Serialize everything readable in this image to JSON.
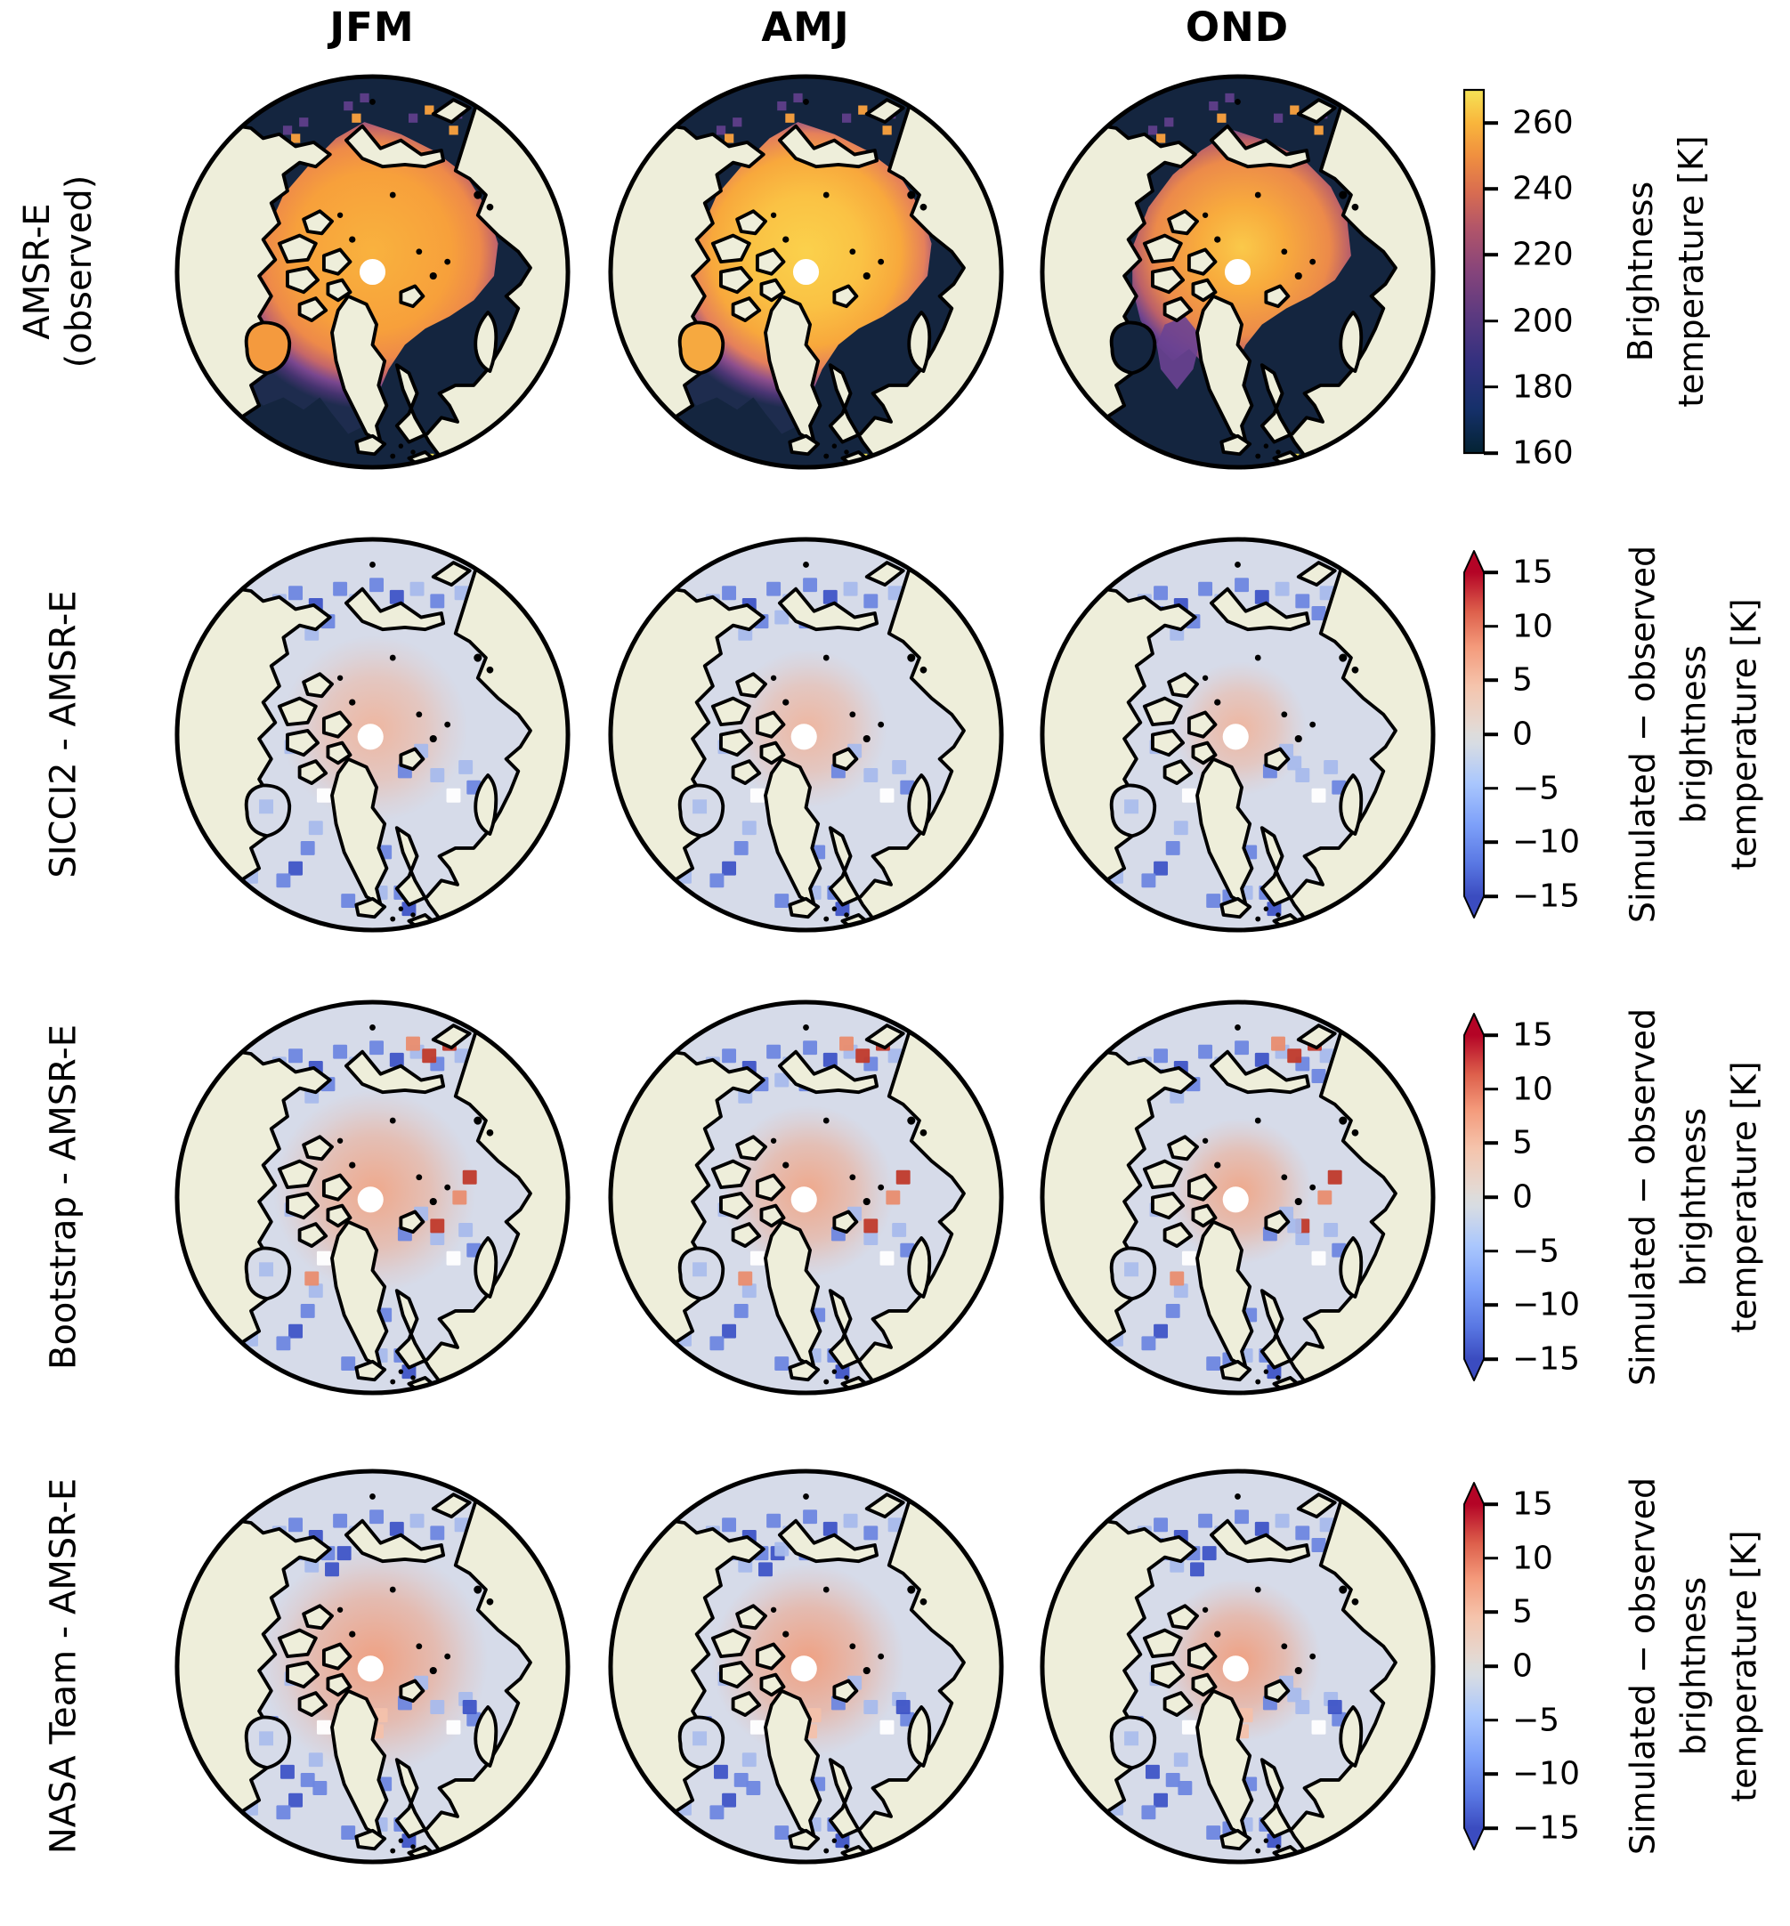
{
  "figure": {
    "background": "#ffffff",
    "description": "4x3 grid of North Polar stereographic maps comparing observed and simulated passive-microwave brightness temperatures"
  },
  "columns": [
    "JFM",
    "AMJ",
    "OND"
  ],
  "rows": [
    {
      "label": "AMSR-E (observed)",
      "label_lines": [
        "AMSR-E",
        "(observed)"
      ],
      "type": "observed",
      "colorbar": "observed",
      "seasons": [
        "large",
        "large_bright",
        "reduced"
      ],
      "hudson": [
        "#f49a3e",
        "#f6a940",
        "ocean"
      ]
    },
    {
      "label": "SICCI2 - AMSR-E",
      "label_lines": [
        "SICCI2 - AMSR-E"
      ],
      "type": "diff",
      "colorbar": "diff",
      "pink": {
        "color": "#f2b094",
        "r": 46,
        "opacity": 0.85
      },
      "extras": "none"
    },
    {
      "label": "Bootstrap - AMSR-E",
      "label_lines": [
        "Bootstrap - AMSR-E"
      ],
      "type": "diff",
      "colorbar": "diff",
      "pink": {
        "color": "#f0a687",
        "r": 50,
        "opacity": 0.95
      },
      "extras": "red_spots"
    },
    {
      "label": "NASA Team - AMSR-E",
      "label_lines": [
        "NASA Team - AMSR-E"
      ],
      "type": "diff",
      "colorbar": "diff",
      "pink": {
        "color": "#efa183",
        "r": 56,
        "opacity": 1.0
      },
      "extras": "more_blue"
    }
  ],
  "colorbars": {
    "observed": {
      "title_lines": [
        "Brightness",
        "temperature [K]"
      ],
      "vmin": 160,
      "vmax": 270,
      "ticks": [
        260,
        240,
        220,
        200,
        180,
        160
      ],
      "extend": false
    },
    "diff": {
      "title_lines": [
        "Simulated − observed",
        "brightness",
        "temperature [K]"
      ],
      "vmin": -15,
      "vmax": 15,
      "ticks": [
        15,
        10,
        5,
        0,
        -5,
        -10,
        -15
      ],
      "extend": true
    }
  },
  "palette": {
    "figure_bg": "#ffffff",
    "land": "#eeeeda",
    "coast": "#000000",
    "ocean": "#14253f",
    "pole_hole": "#ffffff",
    "obs_purple": "#6a4392",
    "obs_fringe_purple": "#5b3d86",
    "obs_fringe_orange": "#f09c3e",
    "obs_fringe_yellow": "#f2e356",
    "diff_base": "#d6dbe9",
    "diff_blue_light": "#a8bbec",
    "diff_blue_mid": "#6e87e0",
    "diff_blue_dark": "#3f55c7",
    "diff_white": "#ffffff",
    "diff_red": "#c03a2b",
    "diff_salmon": "#e98d6f",
    "diff_pink_patch": "#f3c1ab",
    "diff_pink_season_scale": [
      1.0,
      0.85,
      0.72
    ],
    "observed_ice_gradients": {
      "large": [
        [
          0,
          "#f9b23e"
        ],
        [
          0.5,
          "#f7a03b"
        ],
        [
          0.68,
          "#ee8a49"
        ],
        [
          0.78,
          "#c66768"
        ],
        [
          0.86,
          "#7a478f"
        ],
        [
          0.93,
          "#45336f"
        ],
        [
          1,
          "#1e2c4e"
        ]
      ],
      "large_bright": [
        [
          0,
          "#fbd14c"
        ],
        [
          0.35,
          "#fac244"
        ],
        [
          0.6,
          "#f8a83c"
        ],
        [
          0.75,
          "#e5805b"
        ],
        [
          0.85,
          "#8d4e8d"
        ],
        [
          0.93,
          "#4a3573"
        ],
        [
          1,
          "#1e2c4e"
        ]
      ],
      "reduced": [
        [
          0,
          "#fac94a"
        ],
        [
          0.3,
          "#f8ab3d"
        ],
        [
          0.62,
          "#ec8a4a"
        ],
        [
          0.76,
          "#bb6069"
        ],
        [
          0.86,
          "#6d4390"
        ],
        [
          0.93,
          "#3d3066"
        ],
        [
          1,
          "#1a2847"
        ]
      ]
    },
    "cbar_observed_gradient": [
      [
        0,
        "#042333"
      ],
      [
        0.12,
        "#15306a"
      ],
      [
        0.25,
        "#33307f"
      ],
      [
        0.38,
        "#5c3a80"
      ],
      [
        0.5,
        "#86447b"
      ],
      [
        0.62,
        "#b25569"
      ],
      [
        0.72,
        "#d96d50"
      ],
      [
        0.82,
        "#f0903f"
      ],
      [
        0.91,
        "#f9b63c"
      ],
      [
        1,
        "#f5e356"
      ]
    ],
    "cbar_diff_gradient": [
      [
        0,
        "#3b4cc0"
      ],
      [
        0.1,
        "#5977e3"
      ],
      [
        0.22,
        "#7da0f9"
      ],
      [
        0.35,
        "#aac7fd"
      ],
      [
        0.47,
        "#d7dce3"
      ],
      [
        0.5,
        "#dddcdb"
      ],
      [
        0.53,
        "#e5d8d1"
      ],
      [
        0.65,
        "#f5c4ac"
      ],
      [
        0.77,
        "#f49a7b"
      ],
      [
        0.88,
        "#dd5f4b"
      ],
      [
        1,
        "#b40426"
      ]
    ],
    "cbar_arrow_top": "#b40426",
    "cbar_arrow_bottom": "#3b4cc0"
  },
  "chart_data": {
    "type": "heatmap",
    "layout": "4 rows x 3 columns of circular North Polar stereographic map panels; shared colorbar per row on the right; land in beige; black coastlines; white dot at the pole (observation hole)",
    "columns": [
      "JFM",
      "AMJ",
      "OND"
    ],
    "row_labels": [
      "AMSR-E (observed)",
      "SICCI2 - AMSR-E",
      "Bootstrap - AMSR-E",
      "NASA Team - AMSR-E"
    ],
    "colorbars": [
      {
        "applies_to_row": "AMSR-E (observed)",
        "label": "Brightness temperature [K]",
        "range": [
          160,
          270
        ],
        "ticks": [
          160,
          180,
          200,
          220,
          240,
          260
        ],
        "colormap": "dark navy → indigo → purple → magenta → orange → yellow (thermal-like)",
        "extend": "neither"
      },
      {
        "applies_to_rows": [
          "SICCI2 - AMSR-E",
          "Bootstrap - AMSR-E",
          "NASA Team - AMSR-E"
        ],
        "label": "Simulated − observed brightness temperature [K]",
        "range": [
          -15,
          15
        ],
        "ticks": [
          -15,
          -10,
          -5,
          0,
          5,
          10,
          15
        ],
        "colormap": "blue → light gray → red (coolwarm-like)",
        "extend": "both arrows"
      }
    ],
    "panels": [
      {
        "row": "AMSR-E (observed)",
        "column": "JFM",
        "summary": "Orange (~235–250 K) brightness temperatures over the ice-covered central Arctic, Hudson Bay and Baffin Bay; dark navy (~160–175 K) open water in the North Atlantic, Barents and Bering Seas; purple transition at the ice edge."
      },
      {
        "row": "AMSR-E (observed)",
        "column": "AMJ",
        "summary": "Brightest values (~245–260 K, yellow) around the pole; ice edge similar to JFM; Hudson Bay still ice covered."
      },
      {
        "row": "AMSR-E (observed)",
        "column": "OND",
        "summary": "Reduced warm (ice) area; purple (~190–210 K) over the Canadian Archipelago and Baffin Bay; Hudson Bay and marginal seas largely open water (navy)."
      },
      {
        "row": "SICCI2 - AMSR-E",
        "column": "JFM",
        "summary": "Small positive bias (+2 to +5 K, pink) in the central Arctic; negative bias (−5 to −15 K, blue) along the Siberian coast, ice edge, Baffin Bay and Labrador Sea."
      },
      {
        "row": "SICCI2 - AMSR-E",
        "column": "AMJ",
        "summary": "Weaker central positive bias; scattered −5 to −10 K cells along coasts and marginal ice zone."
      },
      {
        "row": "SICCI2 - AMSR-E",
        "column": "OND",
        "summary": "Mostly near-zero to weakly negative differences; blue cells concentrated at the ice edge and coastal polynyas."
      },
      {
        "row": "Bootstrap - AMSR-E",
        "column": "JFM",
        "summary": "Positive bias (+2 to +8 K) near the pole with scattered +10 to +15 K cells along the Siberian coast and Novaya Zemlya; negative bias at the ice edge."
      },
      {
        "row": "Bootstrap - AMSR-E",
        "column": "AMJ",
        "summary": "Mixed red/blue cells in the coastal marginal ice zone; moderate central positive bias."
      },
      {
        "row": "Bootstrap - AMSR-E",
        "column": "OND",
        "summary": "Weak central positive bias; blue ice-edge cells with a few red outliers near coasts."
      },
      {
        "row": "NASA Team - AMSR-E",
        "column": "JFM",
        "summary": "Strongest central Arctic positive bias (up to ~+5 K, broad pink area); widespread −5 to −15 K in Bering Sea, Baffin Bay, Labrador Sea and along the ice edge."
      },
      {
        "row": "NASA Team - AMSR-E",
        "column": "AMJ",
        "summary": "Broad weak positive bias near the pole; negative bias along all marginal seas."
      },
      {
        "row": "NASA Team - AMSR-E",
        "column": "OND",
        "summary": "Predominantly negative differences at the ice edge and coasts; small pink area near the pole."
      }
    ]
  }
}
